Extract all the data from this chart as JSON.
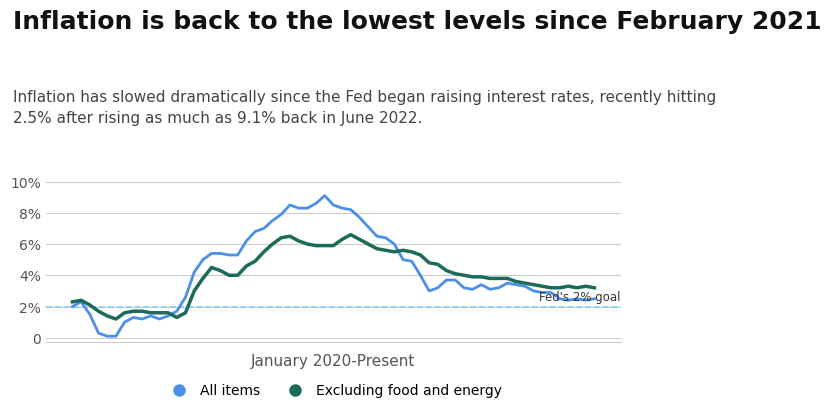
{
  "title": "Inflation is back to the lowest levels since February 2021",
  "subtitle": "Inflation has slowed dramatically since the Fed began raising interest rates, recently hitting\n2.5% after rising as much as 9.1% back in June 2022.",
  "xlabel": "January 2020-Present",
  "ylim": [
    -0.3,
    10.5
  ],
  "yticks": [
    0,
    2,
    4,
    6,
    8,
    10
  ],
  "ytick_labels": [
    "0",
    "2%",
    "4%",
    "6%",
    "8%",
    "10%"
  ],
  "fed_goal": 2.0,
  "fed_goal_label": "Fed's 2% goal",
  "background_color": "#ffffff",
  "all_items_color": "#4B8FE8",
  "core_color": "#1B6B5A",
  "all_items_label": "All items",
  "core_label": "Excluding food and energy",
  "title_fontsize": 18,
  "subtitle_fontsize": 11,
  "grid_color": "#cccccc",
  "all_items": [
    2.0,
    2.3,
    1.5,
    0.3,
    0.1,
    0.1,
    1.0,
    1.3,
    1.2,
    1.4,
    1.2,
    1.4,
    1.7,
    2.6,
    4.2,
    5.0,
    5.4,
    5.4,
    5.3,
    5.3,
    6.2,
    6.8,
    7.0,
    7.5,
    7.9,
    8.5,
    8.3,
    8.3,
    8.6,
    9.1,
    8.5,
    8.3,
    8.2,
    7.7,
    7.1,
    6.5,
    6.4,
    6.0,
    5.0,
    4.9,
    4.0,
    3.0,
    3.2,
    3.7,
    3.7,
    3.2,
    3.1,
    3.4,
    3.1,
    3.2,
    3.5,
    3.4,
    3.3,
    3.0,
    2.9,
    2.9,
    2.5,
    2.4,
    2.5,
    2.4,
    2.5
  ],
  "core_items": [
    2.3,
    2.4,
    2.1,
    1.7,
    1.4,
    1.2,
    1.6,
    1.7,
    1.7,
    1.6,
    1.6,
    1.6,
    1.3,
    1.6,
    3.0,
    3.8,
    4.5,
    4.3,
    4.0,
    4.0,
    4.6,
    4.9,
    5.5,
    6.0,
    6.4,
    6.5,
    6.2,
    6.0,
    5.9,
    5.9,
    5.9,
    6.3,
    6.6,
    6.3,
    6.0,
    5.7,
    5.6,
    5.5,
    5.6,
    5.5,
    5.3,
    4.8,
    4.7,
    4.3,
    4.1,
    4.0,
    3.9,
    3.9,
    3.8,
    3.8,
    3.8,
    3.6,
    3.5,
    3.4,
    3.3,
    3.2,
    3.2,
    3.3,
    3.2,
    3.3,
    3.2
  ]
}
